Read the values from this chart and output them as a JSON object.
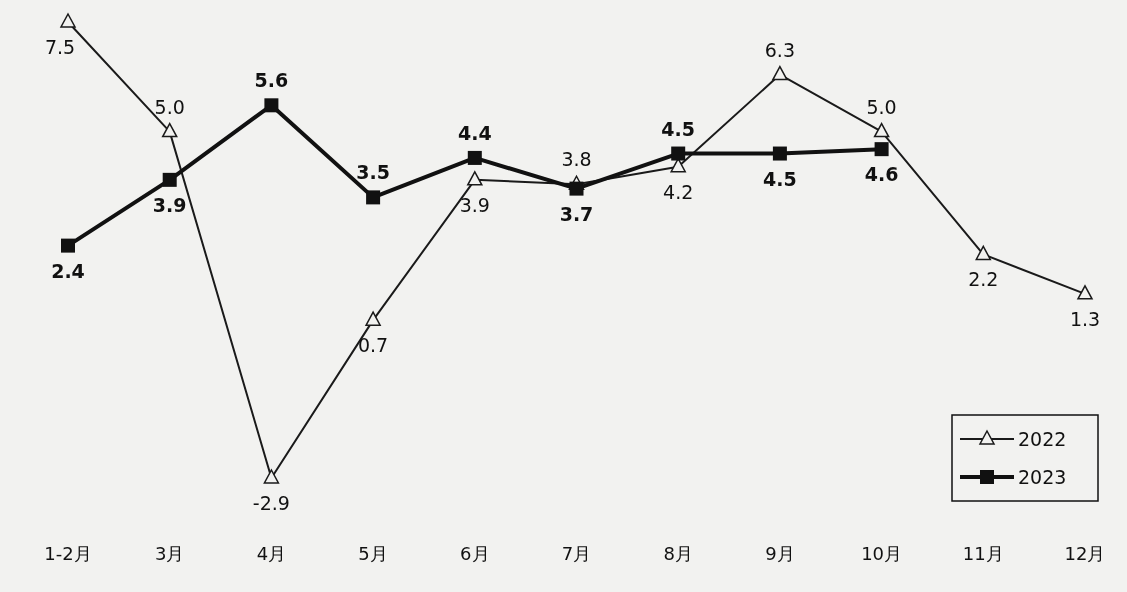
{
  "chart_data": {
    "type": "line",
    "categories": [
      "1-2月",
      "3月",
      "4月",
      "5月",
      "6月",
      "7月",
      "8月",
      "9月",
      "10月",
      "11月",
      "12月"
    ],
    "series": [
      {
        "name": "2022",
        "color": "#1a1a1a",
        "marker": "triangle",
        "values": [
          7.5,
          5.0,
          -2.9,
          0.7,
          3.9,
          3.8,
          4.2,
          6.3,
          5.0,
          2.2,
          1.3
        ],
        "value_labels": [
          "7.5",
          "5.0",
          "-2.9",
          "0.7",
          "3.9",
          "3.8",
          "4.2",
          "6.3",
          "5.0",
          "2.2",
          "1.3"
        ]
      },
      {
        "name": "2023",
        "color": "#111111",
        "marker": "square",
        "values": [
          2.4,
          3.9,
          5.6,
          3.5,
          4.4,
          3.7,
          4.5,
          4.5,
          4.6,
          null,
          null
        ],
        "value_labels": [
          "2.4",
          "3.9",
          "5.6",
          "3.5",
          "4.4",
          "3.7",
          "4.5",
          "4.5",
          "4.6",
          null,
          null
        ]
      }
    ],
    "legend": "bottom right"
  }
}
